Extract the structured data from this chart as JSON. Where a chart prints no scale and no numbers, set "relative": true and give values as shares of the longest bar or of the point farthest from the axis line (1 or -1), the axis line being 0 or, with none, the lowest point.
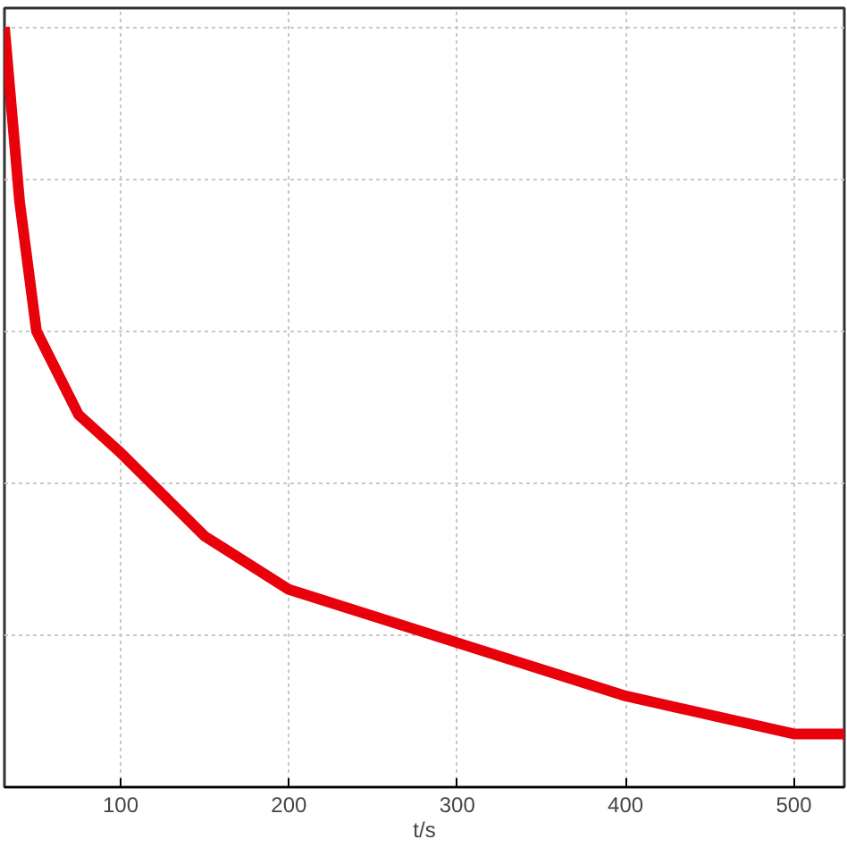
{
  "chart_data": {
    "type": "line",
    "relative": true,
    "xlabel": "t/s",
    "x": [
      31,
      40,
      50,
      75,
      100,
      150,
      200,
      300,
      400,
      500,
      530
    ],
    "series": [
      {
        "color": "#e8000b",
        "values": [
          1,
          0.77,
          0.6,
          0.49,
          0.44,
          0.33,
          0.26,
          0.19,
          0.12,
          0.07,
          0.07
        ]
      }
    ],
    "xlim": [
      31,
      530
    ],
    "xticks": [
      100,
      200,
      300,
      400,
      500
    ],
    "grid": true,
    "line_style": "solid",
    "marker": "none"
  }
}
